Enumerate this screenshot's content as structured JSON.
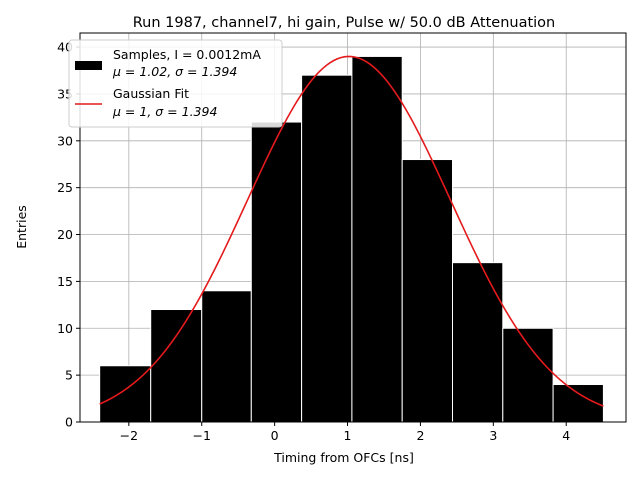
{
  "chart_data": {
    "type": "bar",
    "title": "Run 1987, channel7, hi gain, Pulse w/ 50.0 dB Attenuation",
    "xlabel": "Timing from OFCs [ns]",
    "ylabel": "Entries",
    "xlim": [
      -2.67,
      4.82
    ],
    "ylim": [
      0,
      41.5
    ],
    "xticks": [
      -2,
      -1,
      0,
      1,
      2,
      3,
      4
    ],
    "yticks": [
      0,
      5,
      10,
      15,
      20,
      25,
      30,
      35,
      40
    ],
    "grid": true,
    "bins": [
      {
        "left": -2.4,
        "right": -1.7,
        "count": 6
      },
      {
        "left": -1.7,
        "right": -1.0,
        "count": 12
      },
      {
        "left": -1.0,
        "right": -0.32,
        "count": 14
      },
      {
        "left": -0.32,
        "right": 0.37,
        "count": 32
      },
      {
        "left": 0.37,
        "right": 1.06,
        "count": 37
      },
      {
        "left": 1.06,
        "right": 1.75,
        "count": 39
      },
      {
        "left": 1.75,
        "right": 2.44,
        "count": 28
      },
      {
        "left": 2.44,
        "right": 3.13,
        "count": 17
      },
      {
        "left": 3.13,
        "right": 3.82,
        "count": 10
      },
      {
        "left": 3.82,
        "right": 4.51,
        "count": 4
      }
    ],
    "fit": {
      "mu": 1.02,
      "sigma": 1.394,
      "amplitude": 39,
      "x_range": [
        -2.4,
        4.51
      ]
    },
    "colors": {
      "bars": "#000000",
      "bar_edge": "#ffffff",
      "fit": "#e41a1c",
      "grid": "#b0b0b0"
    },
    "legend": {
      "placement": "top-left",
      "entries": [
        {
          "line1": "Samples, I = 0.0012mA",
          "mu_label": "μ = 1.02, ",
          "sigma_label": "σ = 1.394",
          "swatch": "patch"
        },
        {
          "line1": "Gaussian Fit",
          "mu_label": "μ = 1, ",
          "sigma_label": "σ = 1.394",
          "swatch": "line"
        }
      ]
    }
  }
}
